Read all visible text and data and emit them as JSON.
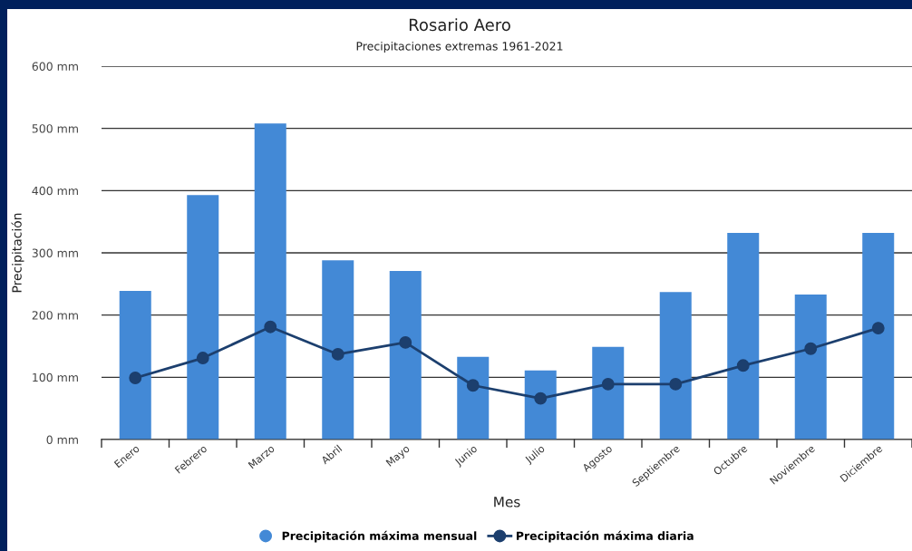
{
  "chart_data": {
    "type": "bar",
    "title": "Rosario Aero",
    "subtitle": "Precipitaciones extremas 1961-2021",
    "xlabel": "Mes",
    "ylabel": "Precipitación",
    "categories": [
      "Enero",
      "Febrero",
      "Marzo",
      "Abril",
      "Mayo",
      "Junio",
      "Julio",
      "Agosto",
      "Septiembre",
      "Octubre",
      "Noviembre",
      "Diciembre"
    ],
    "series": [
      {
        "name": "Precipitación máxima mensual",
        "color": "#4389d6",
        "values": [
          239,
          393,
          508,
          288,
          271,
          133,
          111,
          149,
          237,
          332,
          233,
          332
        ]
      },
      {
        "name": "Precipitación máxima diaria",
        "type": "line",
        "color": "#1c3f6e",
        "marker": "circle",
        "values": [
          99,
          131,
          181,
          137,
          156,
          87,
          66,
          89,
          89,
          119,
          146,
          179
        ]
      }
    ],
    "ylim": [
      0,
      600
    ],
    "yticks": [
      {
        "value": 0,
        "label": "0 mm"
      },
      {
        "value": 100,
        "label": "100 mm"
      },
      {
        "value": 200,
        "label": "200 mm"
      },
      {
        "value": 300,
        "label": "300 mm"
      },
      {
        "value": 400,
        "label": "400 mm"
      },
      {
        "value": 500,
        "label": "500 mm"
      },
      {
        "value": 600,
        "label": "600 mm"
      }
    ],
    "grid": "y",
    "legend": "bottom"
  }
}
